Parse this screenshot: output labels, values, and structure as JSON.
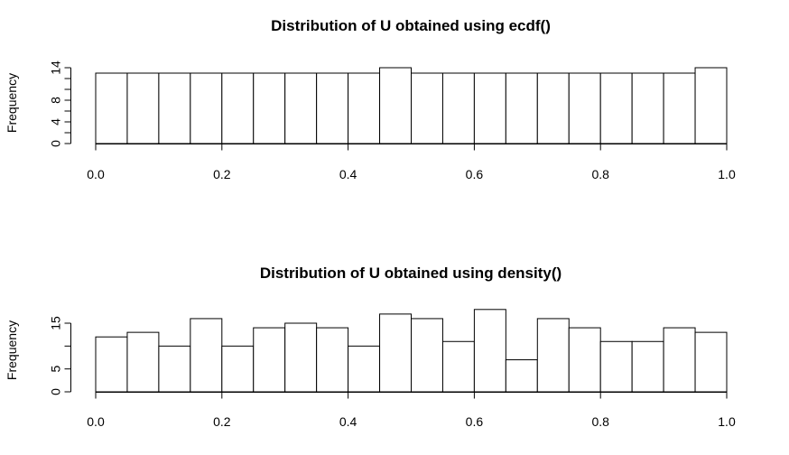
{
  "chart_data": [
    {
      "type": "bar",
      "subtype": "histogram",
      "title": "Distribution of U obtained using ecdf()",
      "xlabel": "",
      "ylabel": "Frequency",
      "bin_edges": [
        0.0,
        0.05,
        0.1,
        0.15,
        0.2,
        0.25,
        0.3,
        0.35,
        0.4,
        0.45,
        0.5,
        0.55,
        0.6,
        0.65,
        0.7,
        0.75,
        0.8,
        0.85,
        0.9,
        0.95,
        1.0
      ],
      "values": [
        13,
        13,
        13,
        13,
        13,
        13,
        13,
        13,
        13,
        14,
        13,
        13,
        13,
        13,
        13,
        13,
        13,
        13,
        13,
        14
      ],
      "xlim": [
        0.0,
        1.0
      ],
      "ylim": [
        0,
        14
      ],
      "x_ticks": [
        "0.0",
        "0.2",
        "0.4",
        "0.6",
        "0.8",
        "1.0"
      ],
      "y_ticks": [
        0,
        2,
        4,
        6,
        8,
        10,
        12,
        14
      ],
      "y_tick_labels": [
        "0",
        "",
        "4",
        "",
        "8",
        "",
        "",
        "14"
      ]
    },
    {
      "type": "bar",
      "subtype": "histogram",
      "title": "Distribution of U obtained using density()",
      "xlabel": "",
      "ylabel": "Frequency",
      "bin_edges": [
        0.0,
        0.05,
        0.1,
        0.15,
        0.2,
        0.25,
        0.3,
        0.35,
        0.4,
        0.45,
        0.5,
        0.55,
        0.6,
        0.65,
        0.7,
        0.75,
        0.8,
        0.85,
        0.9,
        0.95,
        1.0
      ],
      "values": [
        12,
        13,
        10,
        16,
        10,
        14,
        15,
        14,
        10,
        17,
        16,
        11,
        18,
        7,
        16,
        14,
        11,
        11,
        14,
        13
      ],
      "xlim": [
        0.0,
        1.0
      ],
      "ylim": [
        0,
        15
      ],
      "x_ticks": [
        "0.0",
        "0.2",
        "0.4",
        "0.6",
        "0.8",
        "1.0"
      ],
      "y_ticks": [
        0,
        5,
        10,
        15
      ],
      "y_tick_labels": [
        "0",
        "5",
        "",
        "15"
      ]
    }
  ]
}
